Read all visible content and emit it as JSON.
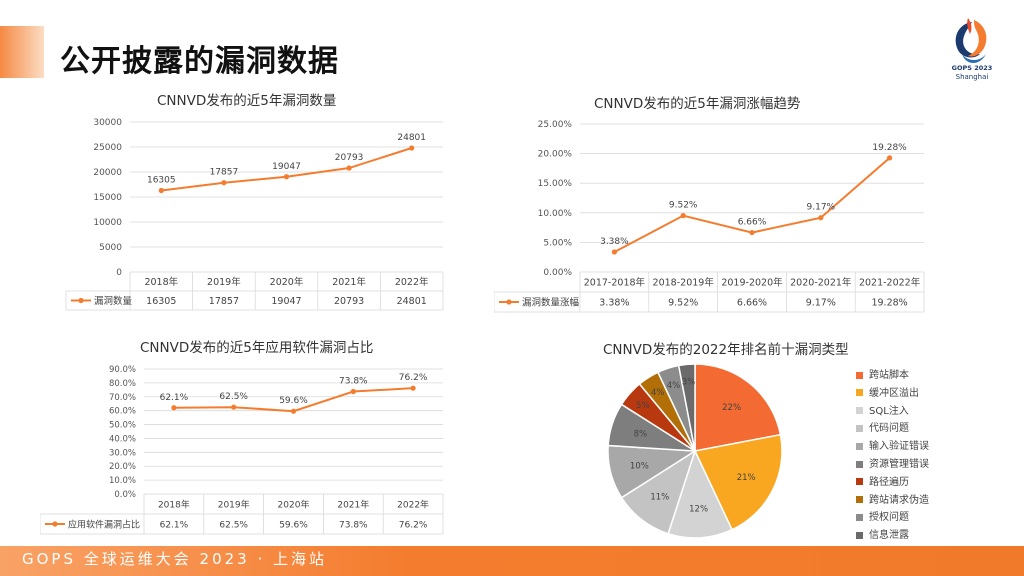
{
  "slide": {
    "title": "公开披露的漏洞数据",
    "logo_name": "GOPS 2023",
    "logo_city": "Shanghai",
    "footer": "GOPS 全球运维大会 2023 · 上海站"
  },
  "colors": {
    "accent": "#f47c2e",
    "dark_blue": "#1c3a6e",
    "grid": "#d9d9d9"
  },
  "chart_data": [
    {
      "type": "line",
      "title": "CNNVD发布的近5年漏洞数量",
      "categories": [
        "2018年",
        "2019年",
        "2020年",
        "2021年",
        "2022年"
      ],
      "series": [
        {
          "name": "漏洞数量",
          "values": [
            16305,
            17857,
            19047,
            20793,
            24801
          ],
          "labels": [
            "16305",
            "17857",
            "19047",
            "20793",
            "24801"
          ],
          "table_values": [
            "16305",
            "17857",
            "19047",
            "20793",
            "24801"
          ]
        }
      ],
      "ylim": [
        0,
        30000
      ],
      "yticks": [
        0,
        5000,
        10000,
        15000,
        20000,
        25000,
        30000
      ],
      "ytick_labels": [
        "0",
        "5000",
        "10000",
        "15000",
        "20000",
        "25000",
        "30000"
      ],
      "grid": true,
      "data_table": true
    },
    {
      "type": "line",
      "title": "CNNVD发布的近5年漏洞涨幅趋势",
      "categories": [
        "2017-2018年",
        "2018-2019年",
        "2019-2020年",
        "2020-2021年",
        "2021-2022年"
      ],
      "series": [
        {
          "name": "漏洞数量涨幅",
          "values": [
            3.38,
            9.52,
            6.66,
            9.17,
            19.28
          ],
          "labels": [
            "3.38%",
            "9.52%",
            "6.66%",
            "9.17%",
            "19.28%"
          ],
          "table_values": [
            "3.38%",
            "9.52%",
            "6.66%",
            "9.17%",
            "19.28%"
          ]
        }
      ],
      "ylim": [
        0,
        25
      ],
      "yticks": [
        0,
        5,
        10,
        15,
        20,
        25
      ],
      "ytick_labels": [
        "0.00%",
        "5.00%",
        "10.00%",
        "15.00%",
        "20.00%",
        "25.00%"
      ],
      "grid": true,
      "data_table": true
    },
    {
      "type": "line",
      "title": "CNNVD发布的近5年应用软件漏洞占比",
      "categories": [
        "2018年",
        "2019年",
        "2020年",
        "2021年",
        "2022年"
      ],
      "series": [
        {
          "name": "应用软件漏洞占比",
          "values": [
            62.1,
            62.5,
            59.6,
            73.8,
            76.2
          ],
          "labels": [
            "62.1%",
            "62.5%",
            "59.6%",
            "73.8%",
            "76.2%"
          ],
          "table_values": [
            "62.1%",
            "62.5%",
            "59.6%",
            "73.8%",
            "76.2%"
          ]
        }
      ],
      "ylim": [
        0,
        90
      ],
      "yticks": [
        0,
        10,
        20,
        30,
        40,
        50,
        60,
        70,
        80,
        90
      ],
      "ytick_labels": [
        "0.0%",
        "10.0%",
        "20.0%",
        "30.0%",
        "40.0%",
        "50.0%",
        "60.0%",
        "70.0%",
        "80.0%",
        "90.0%"
      ],
      "grid": true,
      "data_table": true
    },
    {
      "type": "pie",
      "title": "CNNVD发布的2022年排名前十漏洞类型",
      "legend_position": "right",
      "slices": [
        {
          "name": "跨站脚本",
          "value": 22,
          "label": "22%",
          "color": "#f36b32"
        },
        {
          "name": "缓冲区溢出",
          "value": 21,
          "label": "21%",
          "color": "#f9a620"
        },
        {
          "name": "SQL注入",
          "value": 12,
          "label": "12%",
          "color": "#d3d3d3"
        },
        {
          "name": "代码问题",
          "value": 11,
          "label": "11%",
          "color": "#c3c3c3"
        },
        {
          "name": "输入验证错误",
          "value": 10,
          "label": "10%",
          "color": "#a8a8a8"
        },
        {
          "name": "资源管理错误",
          "value": 8,
          "label": "8%",
          "color": "#7e7e7e"
        },
        {
          "name": "路径遍历",
          "value": 5,
          "label": "5%",
          "color": "#b8390f"
        },
        {
          "name": "跨站请求伪造",
          "value": 4,
          "label": "4%",
          "color": "#b26f08"
        },
        {
          "name": "授权问题",
          "value": 4,
          "label": "4%",
          "color": "#8c8c8c"
        },
        {
          "name": "信息泄露",
          "value": 3,
          "label": "3%",
          "color": "#6a6a6a"
        }
      ]
    }
  ]
}
